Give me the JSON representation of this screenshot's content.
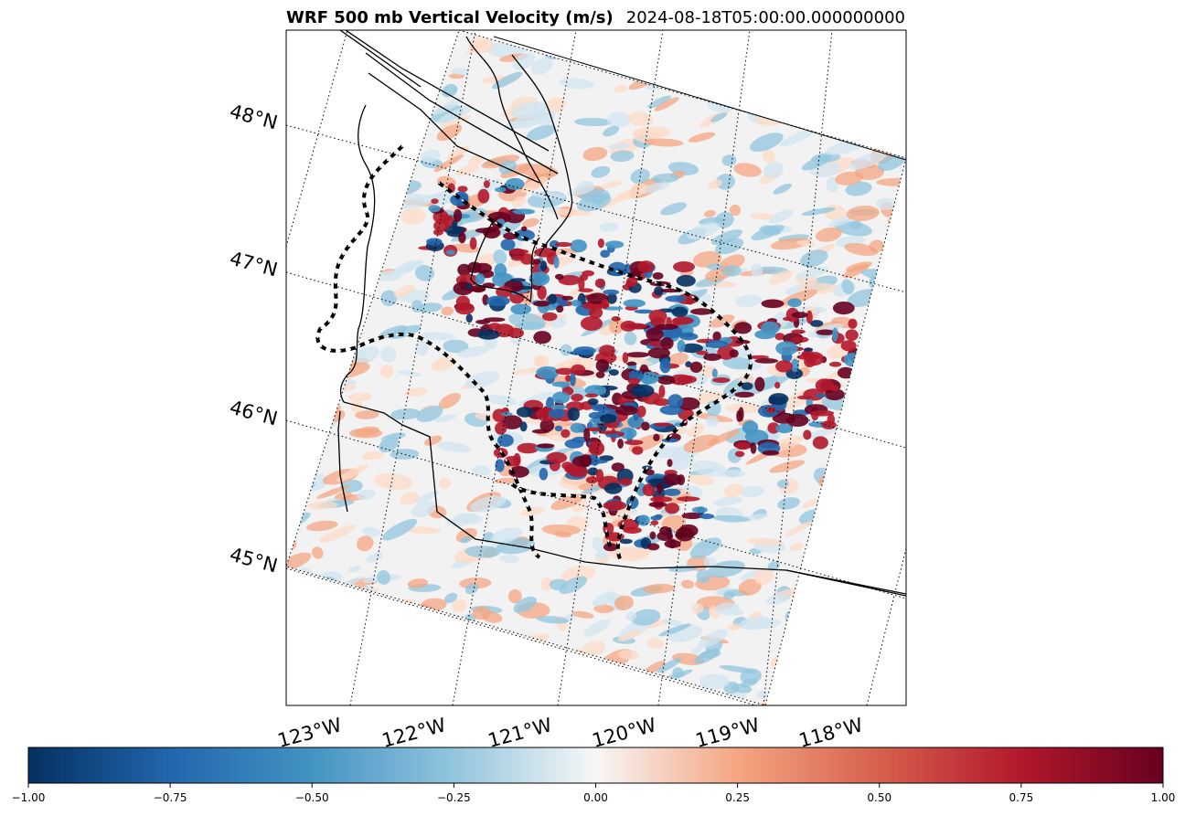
{
  "title": "WRF 500 mb Vertical Velocity (m/s)",
  "subtitle": "2024-08-18T05:00:00.000000000",
  "chart_data": {
    "type": "heatmap",
    "variable": "500 mb Vertical Velocity",
    "units": "m/s",
    "colormap": "RdBu_r",
    "color_range": [
      -1.0,
      1.0
    ],
    "colors": {
      "low": "#053061",
      "mid": "#f7f7f7",
      "high": "#67001f"
    },
    "lat_labels": [
      "48°N",
      "47°N",
      "46°N",
      "45°N"
    ],
    "lon_labels": [
      "123°W",
      "122°W",
      "121°W",
      "120°W",
      "119°W",
      "118°W"
    ],
    "colorbar": {
      "ticks": [
        -1.0,
        -0.75,
        -0.5,
        -0.25,
        0.0,
        0.25,
        0.5,
        0.75,
        1.0
      ],
      "tick_labels": [
        "−1.00",
        "−0.75",
        "−0.50",
        "−0.25",
        "0.00",
        "0.25",
        "0.50",
        "0.75",
        "1.00"
      ]
    },
    "gridlines": "dotted",
    "features": [
      "coastline",
      "state borders",
      "county borders",
      "contour lines"
    ]
  }
}
